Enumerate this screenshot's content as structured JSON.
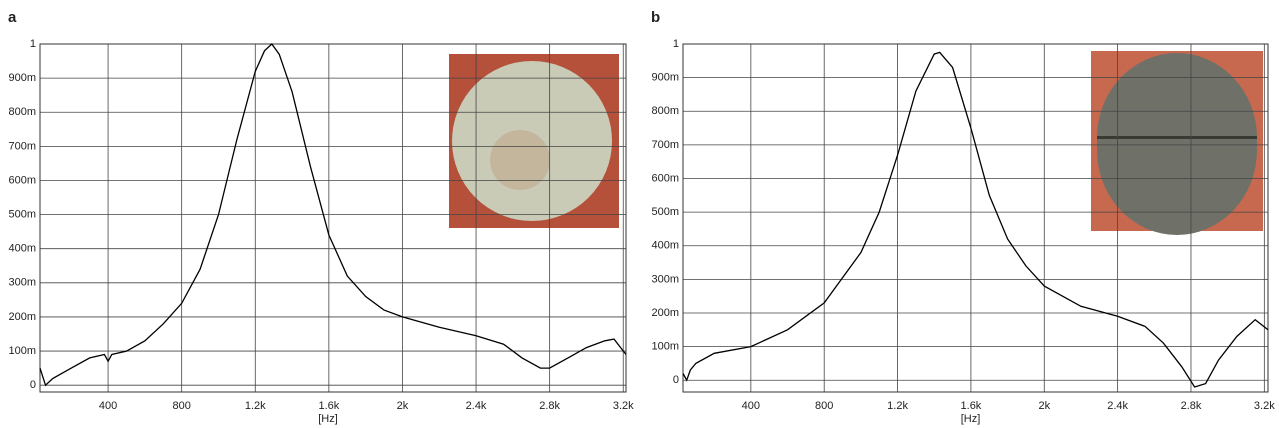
{
  "chart_data": [
    {
      "type": "line",
      "title": "a",
      "x_label": "[Hz]",
      "grid": true,
      "color": "#000000",
      "xlim": [
        30,
        3215
      ],
      "ylim": [
        -0.02,
        1.0
      ],
      "xticks": [
        400,
        800,
        {
          "value": 1200,
          "label": "1.2k"
        },
        {
          "value": 1600,
          "label": "1.6k"
        },
        {
          "value": 2000,
          "label": "2k"
        },
        {
          "value": 2400,
          "label": "2.4k"
        },
        {
          "value": 2800,
          "label": "2.8k"
        },
        {
          "value": 3200,
          "label": "3.2k"
        }
      ],
      "yticks": [
        0,
        {
          "value": 0.1,
          "label": "100m"
        },
        {
          "value": 0.2,
          "label": "200m"
        },
        {
          "value": 0.3,
          "label": "300m"
        },
        {
          "value": 0.4,
          "label": "400m"
        },
        {
          "value": 0.5,
          "label": "500m"
        },
        {
          "value": 0.6,
          "label": "600m"
        },
        {
          "value": 0.7,
          "label": "700m"
        },
        {
          "value": 0.8,
          "label": "800m"
        },
        {
          "value": 0.9,
          "label": "900m"
        },
        1
      ],
      "x": [
        30,
        60,
        100,
        200,
        300,
        380,
        400,
        420,
        500,
        600,
        700,
        800,
        900,
        1000,
        1100,
        1200,
        1250,
        1290,
        1330,
        1400,
        1500,
        1600,
        1700,
        1800,
        1900,
        2000,
        2200,
        2400,
        2550,
        2650,
        2750,
        2800,
        2900,
        3000,
        3100,
        3150,
        3215
      ],
      "values": [
        0.05,
        0.0,
        0.02,
        0.05,
        0.08,
        0.09,
        0.07,
        0.09,
        0.1,
        0.13,
        0.18,
        0.24,
        0.34,
        0.5,
        0.72,
        0.92,
        0.98,
        1.0,
        0.97,
        0.86,
        0.64,
        0.44,
        0.32,
        0.26,
        0.22,
        0.2,
        0.17,
        0.145,
        0.12,
        0.08,
        0.05,
        0.05,
        0.08,
        0.11,
        0.13,
        0.135,
        0.09
      ]
    },
    {
      "type": "line",
      "title": "b",
      "x_label": "[Hz]",
      "grid": true,
      "color": "#000000",
      "xlim": [
        30,
        3220
      ],
      "ylim": [
        -0.035,
        1.0
      ],
      "xticks": [
        400,
        800,
        {
          "value": 1200,
          "label": "1.2k"
        },
        {
          "value": 1600,
          "label": "1.6k"
        },
        {
          "value": 2000,
          "label": "2k"
        },
        {
          "value": 2400,
          "label": "2.4k"
        },
        {
          "value": 2800,
          "label": "2.8k"
        },
        {
          "value": 3200,
          "label": "3.2k"
        }
      ],
      "yticks": [
        0,
        {
          "value": 0.1,
          "label": "100m"
        },
        {
          "value": 0.2,
          "label": "200m"
        },
        {
          "value": 0.3,
          "label": "300m"
        },
        {
          "value": 0.4,
          "label": "400m"
        },
        {
          "value": 0.5,
          "label": "500m"
        },
        {
          "value": 0.6,
          "label": "600m"
        },
        {
          "value": 0.7,
          "label": "700m"
        },
        {
          "value": 0.8,
          "label": "800m"
        },
        {
          "value": 0.9,
          "label": "900m"
        },
        1
      ],
      "x": [
        30,
        50,
        70,
        100,
        200,
        400,
        600,
        800,
        1000,
        1100,
        1200,
        1300,
        1400,
        1430,
        1500,
        1600,
        1700,
        1800,
        1900,
        2000,
        2200,
        2400,
        2550,
        2650,
        2750,
        2820,
        2880,
        2950,
        3050,
        3150,
        3220
      ],
      "values": [
        0.02,
        0.0,
        0.03,
        0.05,
        0.08,
        0.1,
        0.15,
        0.23,
        0.38,
        0.5,
        0.67,
        0.86,
        0.97,
        0.975,
        0.93,
        0.75,
        0.55,
        0.42,
        0.34,
        0.28,
        0.22,
        0.19,
        0.16,
        0.11,
        0.04,
        -0.02,
        -0.01,
        0.06,
        0.13,
        0.18,
        0.15
      ]
    }
  ]
}
